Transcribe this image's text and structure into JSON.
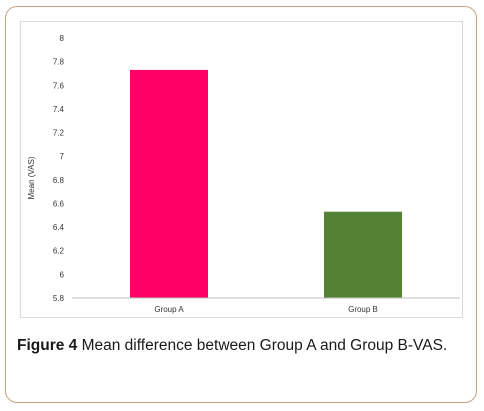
{
  "chart_data": {
    "type": "bar",
    "categories": [
      "Group A",
      "Group B"
    ],
    "values": [
      7.73,
      6.53
    ],
    "colors": [
      "#ff0066",
      "#548235"
    ],
    "ylabel": "Mean (VAS)",
    "xlabel": "",
    "ylim": [
      5.8,
      8
    ],
    "yticks": [
      "5.8",
      "6",
      "6.2",
      "6.4",
      "6.6",
      "6.8",
      "7",
      "7.2",
      "7.4",
      "7.6",
      "7.8",
      "8"
    ],
    "grid": false
  },
  "caption": {
    "label": "Figure 4",
    "text": " Mean difference between Group A and Group B-VAS."
  }
}
